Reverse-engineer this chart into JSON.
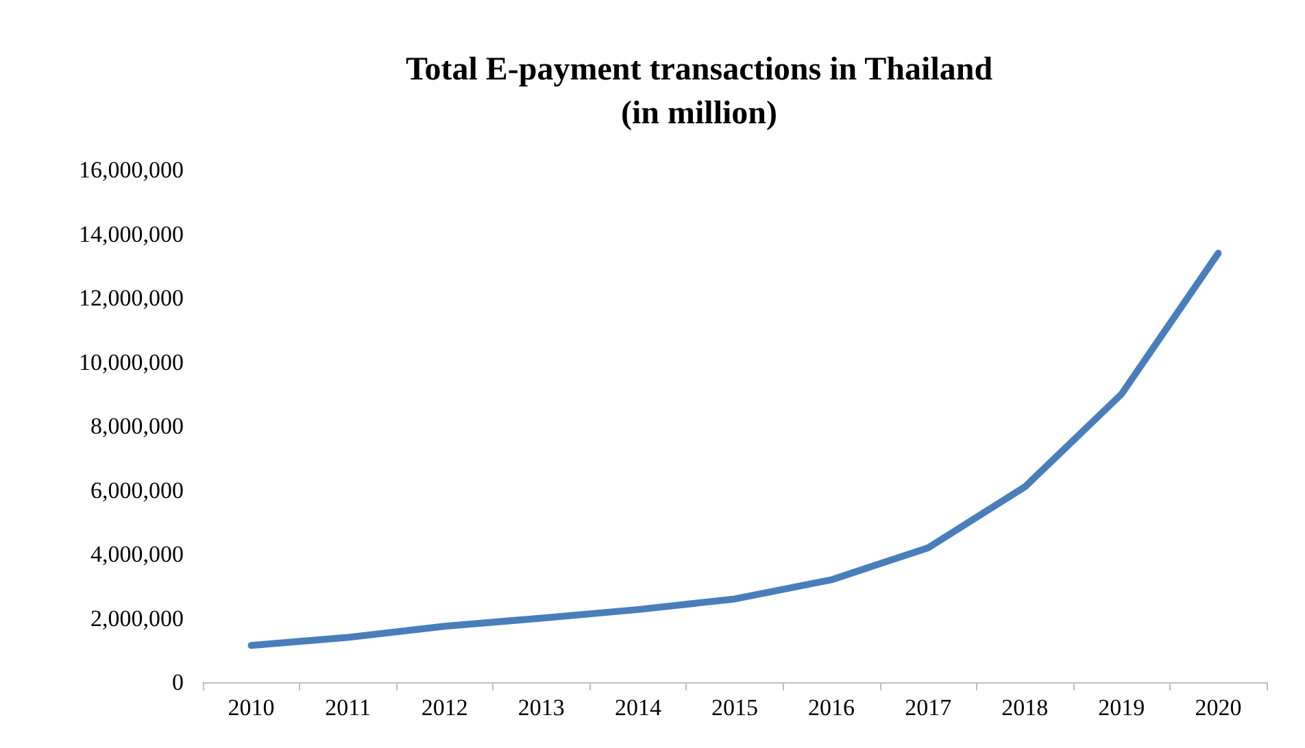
{
  "chart_data": {
    "type": "line",
    "title": "Total E-payment transactions in Thailand\n(in million)",
    "categories": [
      "2010",
      "2011",
      "2012",
      "2013",
      "2014",
      "2015",
      "2016",
      "2017",
      "2018",
      "2019",
      "2020"
    ],
    "series": [
      {
        "color": "#4a7ebb",
        "values": [
          1150000,
          1400000,
          1750000,
          2000000,
          2270000,
          2600000,
          3200000,
          4200000,
          6100000,
          9000000,
          13400000
        ]
      }
    ],
    "ylim": [
      0,
      16000000
    ],
    "yticks": [
      0,
      {
        "value": 2000000,
        "label": "2,000,000"
      },
      {
        "value": 4000000,
        "label": "4,000,000"
      },
      {
        "value": 6000000,
        "label": "6,000,000"
      },
      {
        "value": 8000000,
        "label": "8,000,000"
      },
      {
        "value": 10000000,
        "label": "10,000,000"
      },
      {
        "value": 12000000,
        "label": "12,000,000"
      },
      {
        "value": 14000000,
        "label": "14,000,000"
      },
      {
        "value": 16000000,
        "label": "16,000,000"
      }
    ],
    "grid": false,
    "marker": "none",
    "line_style": "solid"
  }
}
